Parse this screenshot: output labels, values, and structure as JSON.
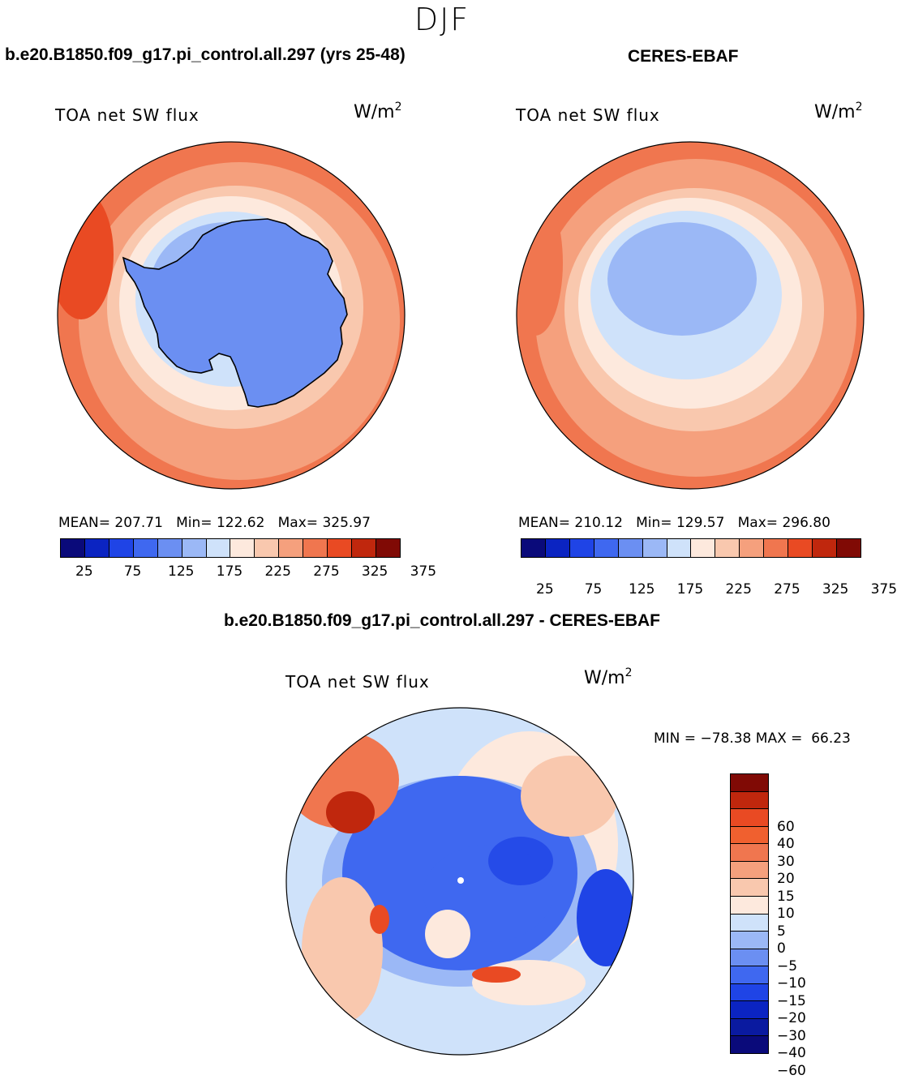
{
  "season": "DJF",
  "variable_label": "TOA net SW flux",
  "units_base": "W/m",
  "units_exp": "2",
  "colors": {
    "abs": [
      "#0a0a7a",
      "#0b24c2",
      "#1f44e6",
      "#3f68f0",
      "#6b8ff2",
      "#9bb8f6",
      "#cfe2fa",
      "#fde9dd",
      "#f9c8ae",
      "#f5a07d",
      "#f0764f",
      "#e94a23",
      "#c0270d",
      "#800a05"
    ],
    "diff": [
      "#0a0a7a",
      "#0b24c2",
      "#1f44e6",
      "#3f68f0",
      "#6b8ff2",
      "#9bb8f6",
      "#cfe2fa",
      "#fde9dd",
      "#f9c8ae",
      "#f5a07d",
      "#f0764f",
      "#e94a23",
      "#c0270d",
      "#800a05"
    ],
    "coast": "#000000"
  },
  "chart_data": [
    {
      "type": "heatmap",
      "projection": "south-polar-stereographic",
      "title": "b.e20.B1850.f09_g17.pi_control.all.297 (yrs 25-48)",
      "left_label": "TOA net SW flux",
      "stats": {
        "mean_label": "MEAN=",
        "mean": "207.71",
        "min_label": "Min=",
        "min": "122.62",
        "max_label": "Max=",
        "max": "325.97"
      },
      "colorbar_ticks": [
        "25",
        "75",
        "125",
        "175",
        "225",
        "275",
        "325",
        "375"
      ],
      "contour_levels": [
        25,
        50,
        75,
        100,
        125,
        150,
        175,
        200,
        225,
        250,
        275,
        300,
        325,
        350,
        375
      ]
    },
    {
      "type": "heatmap",
      "projection": "south-polar-stereographic",
      "title": "CERES-EBAF",
      "left_label": "TOA net SW flux",
      "stats": {
        "mean_label": "MEAN=",
        "mean": "210.12",
        "min_label": "Min=",
        "min": "129.57",
        "max_label": "Max=",
        "max": "296.80"
      },
      "colorbar_ticks": [
        "25",
        "75",
        "125",
        "175",
        "225",
        "275",
        "325",
        "375"
      ],
      "contour_levels": [
        25,
        50,
        75,
        100,
        125,
        150,
        175,
        200,
        225,
        250,
        275,
        300,
        325,
        350,
        375
      ]
    },
    {
      "type": "heatmap",
      "projection": "south-polar-stereographic",
      "title": "b.e20.B1850.f09_g17.pi_control.all.297 - CERES-EBAF",
      "left_label": "TOA net SW flux",
      "stats": {
        "min_label": "MIN =",
        "min": "−78.38",
        "max_label": "MAX =",
        "max": "66.23"
      },
      "colorbar_ticks": [
        "60",
        "40",
        "30",
        "20",
        "15",
        "10",
        "5",
        "0",
        "−5",
        "−10",
        "−15",
        "−20",
        "−30",
        "−40",
        "−60"
      ],
      "contour_levels": [
        -60,
        -40,
        -30,
        -20,
        -15,
        -10,
        -5,
        0,
        5,
        10,
        15,
        20,
        30,
        40,
        60
      ]
    }
  ]
}
